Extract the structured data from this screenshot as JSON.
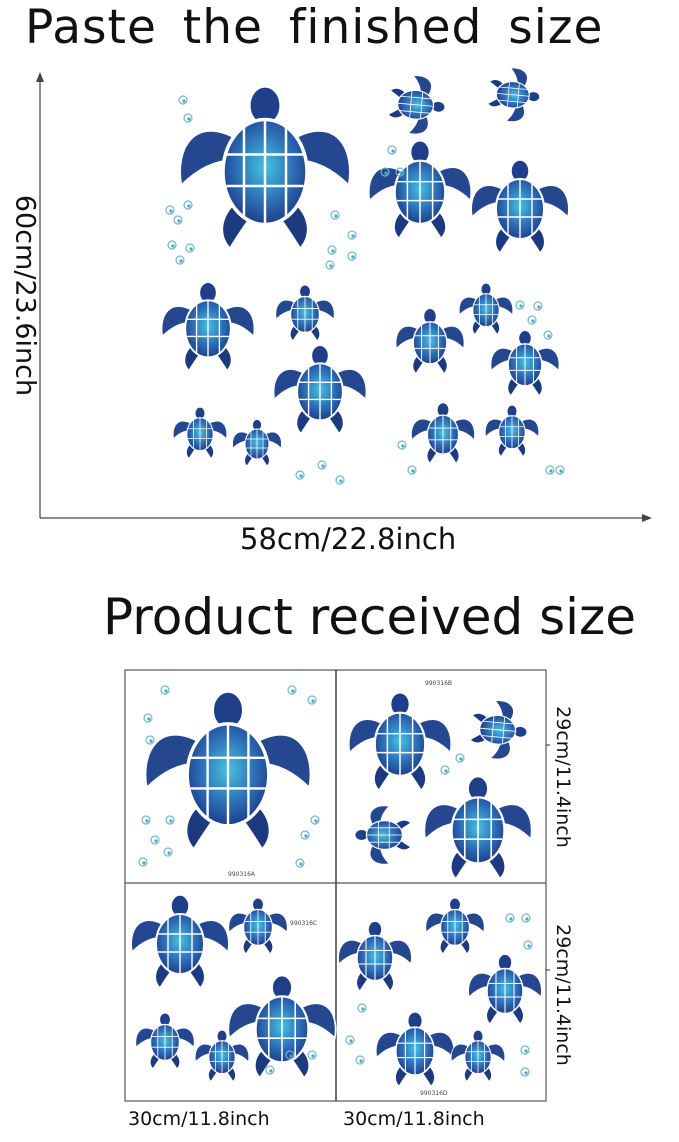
{
  "finished": {
    "title": "Paste the finished size",
    "height_label": "60cm/23.6inch",
    "width_label": "58cm/22.8inch"
  },
  "received": {
    "title": "Product received size",
    "sheet_height_labels": [
      "29cm/11.4inch",
      "29cm/11.4inch"
    ],
    "sheet_width_labels": [
      "30cm/11.8inch",
      "30cm/11.8inch"
    ],
    "sheet_codes": [
      "990316A",
      "990316B",
      "990316C",
      "990316D"
    ]
  },
  "colors": {
    "turtle_dark": "#1f3f8a",
    "turtle_mid": "#2d6fb8",
    "turtle_light": "#3cb5d8",
    "bubble": "#5fb8c8",
    "axis": "#444444"
  }
}
